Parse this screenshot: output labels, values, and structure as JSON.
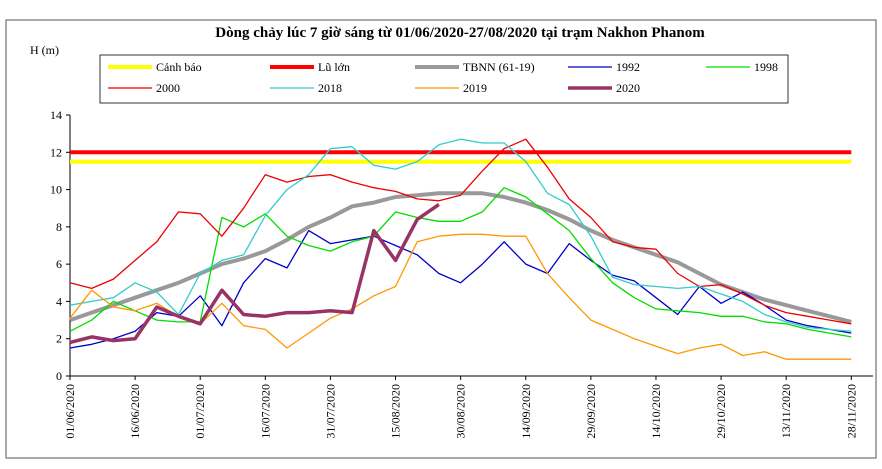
{
  "chart_data": {
    "type": "line",
    "title": "Dòng chảy lúc 7 giờ sáng từ 01/06/2020-27/08/2020 tại trạm Nakhon Phanom",
    "y_label": "H (m)",
    "x": [
      "2020-06-01",
      "2020-06-06",
      "2020-06-11",
      "2020-06-16",
      "2020-06-21",
      "2020-06-26",
      "2020-07-01",
      "2020-07-06",
      "2020-07-11",
      "2020-07-16",
      "2020-07-21",
      "2020-07-26",
      "2020-07-31",
      "2020-08-05",
      "2020-08-10",
      "2020-08-15",
      "2020-08-20",
      "2020-08-25",
      "2020-08-30",
      "2020-09-04",
      "2020-09-09",
      "2020-09-14",
      "2020-09-19",
      "2020-09-24",
      "2020-09-29",
      "2020-10-04",
      "2020-10-09",
      "2020-10-14",
      "2020-10-19",
      "2020-10-24",
      "2020-10-29",
      "2020-11-03",
      "2020-11-08",
      "2020-11-13",
      "2020-11-18",
      "2020-11-23",
      "2020-11-28"
    ],
    "xlim": [
      "2020-06-01",
      "2020-12-03"
    ],
    "xticks": [
      {
        "value": "2020-06-01",
        "label": "01/06/2020"
      },
      {
        "value": "2020-06-16",
        "label": "16/06/2020"
      },
      {
        "value": "2020-07-01",
        "label": "01/07/2020"
      },
      {
        "value": "2020-07-16",
        "label": "16/07/2020"
      },
      {
        "value": "2020-07-31",
        "label": "31/07/2020"
      },
      {
        "value": "2020-08-15",
        "label": "15/08/2020"
      },
      {
        "value": "2020-08-30",
        "label": "30/08/2020"
      },
      {
        "value": "2020-09-14",
        "label": "14/09/2020"
      },
      {
        "value": "2020-09-29",
        "label": "29/09/2020"
      },
      {
        "value": "2020-10-14",
        "label": "14/10/2020"
      },
      {
        "value": "2020-10-29",
        "label": "29/10/2020"
      },
      {
        "value": "2020-11-13",
        "label": "13/11/2020"
      },
      {
        "value": "2020-11-28",
        "label": "28/11/2020"
      }
    ],
    "ylim": [
      0,
      14
    ],
    "yticks": [
      0,
      2,
      4,
      6,
      8,
      10,
      12,
      14
    ],
    "series": [
      {
        "name": "Cảnh báo",
        "color": "#ffff00",
        "width": 4,
        "values": [
          11.5,
          11.5,
          11.5,
          11.5,
          11.5,
          11.5,
          11.5,
          11.5,
          11.5,
          11.5,
          11.5,
          11.5,
          11.5,
          11.5,
          11.5,
          11.5,
          11.5,
          11.5,
          11.5,
          11.5,
          11.5,
          11.5,
          11.5,
          11.5,
          11.5,
          11.5,
          11.5,
          11.5,
          11.5,
          11.5,
          11.5,
          11.5,
          11.5,
          11.5,
          11.5,
          11.5,
          11.5
        ]
      },
      {
        "name": "Lũ lớn",
        "color": "#ff0000",
        "width": 4,
        "values": [
          12,
          12,
          12,
          12,
          12,
          12,
          12,
          12,
          12,
          12,
          12,
          12,
          12,
          12,
          12,
          12,
          12,
          12,
          12,
          12,
          12,
          12,
          12,
          12,
          12,
          12,
          12,
          12,
          12,
          12,
          12,
          12,
          12,
          12,
          12,
          12,
          12
        ]
      },
      {
        "name": "TBNN (61-19)",
        "color": "#999999",
        "width": 4,
        "values": [
          3.0,
          3.4,
          3.8,
          4.2,
          4.6,
          5.0,
          5.5,
          6.0,
          6.3,
          6.7,
          7.3,
          8.0,
          8.5,
          9.1,
          9.3,
          9.6,
          9.7,
          9.8,
          9.8,
          9.8,
          9.6,
          9.3,
          8.9,
          8.4,
          7.8,
          7.3,
          6.9,
          6.5,
          6.1,
          5.5,
          4.9,
          4.5,
          4.1,
          3.8,
          3.5,
          3.2,
          2.9
        ]
      },
      {
        "name": "1992",
        "color": "#0000cc",
        "width": 1.3,
        "values": [
          1.5,
          1.7,
          2.0,
          2.4,
          3.4,
          3.2,
          4.3,
          2.7,
          5.0,
          6.3,
          5.8,
          7.8,
          7.1,
          7.3,
          7.5,
          7.0,
          6.5,
          5.5,
          5.0,
          6.0,
          7.2,
          6.0,
          5.5,
          7.1,
          6.2,
          5.4,
          5.1,
          4.2,
          3.3,
          4.8,
          3.9,
          4.5,
          3.8,
          3.0,
          2.7,
          2.5,
          2.3
        ]
      },
      {
        "name": "1998",
        "color": "#00dd00",
        "width": 1.3,
        "values": [
          2.4,
          3.0,
          4.0,
          3.5,
          3.0,
          2.9,
          2.9,
          8.5,
          8.0,
          8.7,
          7.5,
          7.0,
          6.7,
          7.2,
          7.5,
          8.8,
          8.5,
          8.3,
          8.3,
          8.8,
          10.1,
          9.6,
          8.7,
          7.8,
          6.3,
          5.0,
          4.2,
          3.6,
          3.5,
          3.4,
          3.2,
          3.2,
          2.9,
          2.8,
          2.5,
          2.3,
          2.1
        ]
      },
      {
        "name": "2000",
        "color": "#ee0000",
        "width": 1.3,
        "values": [
          5.0,
          4.7,
          5.2,
          6.2,
          7.2,
          8.8,
          8.7,
          7.5,
          9.0,
          10.8,
          10.4,
          10.7,
          10.8,
          10.4,
          10.1,
          9.9,
          9.5,
          9.4,
          9.7,
          11.0,
          12.2,
          12.7,
          11.2,
          9.5,
          8.5,
          7.2,
          6.9,
          6.8,
          5.5,
          4.8,
          4.9,
          4.4,
          3.8,
          3.4,
          3.2,
          3.0,
          2.8
        ]
      },
      {
        "name": "2018",
        "color": "#33cccc",
        "width": 1.3,
        "values": [
          3.8,
          4.0,
          4.2,
          5.0,
          4.5,
          3.3,
          5.5,
          6.2,
          6.5,
          8.6,
          10.0,
          10.8,
          12.2,
          12.3,
          11.3,
          11.1,
          11.5,
          12.4,
          12.7,
          12.5,
          12.5,
          11.5,
          9.8,
          9.2,
          7.5,
          5.3,
          4.9,
          4.8,
          4.7,
          4.8,
          4.4,
          4.0,
          3.3,
          2.9,
          2.6,
          2.5,
          2.4
        ]
      },
      {
        "name": "2019",
        "color": "#ff9900",
        "width": 1.3,
        "values": [
          3.1,
          4.6,
          3.7,
          3.5,
          3.9,
          3.2,
          2.8,
          3.9,
          2.7,
          2.5,
          1.5,
          2.3,
          3.1,
          3.6,
          4.3,
          4.8,
          7.2,
          7.5,
          7.6,
          7.6,
          7.5,
          7.5,
          5.5,
          4.2,
          3.0,
          2.5,
          2.0,
          1.6,
          1.2,
          1.5,
          1.7,
          1.1,
          1.3,
          0.9,
          0.9,
          0.9,
          0.9
        ]
      },
      {
        "name": "2020",
        "color": "#993366",
        "width": 3.5,
        "values": [
          1.8,
          2.1,
          1.9,
          2.0,
          3.7,
          3.2,
          2.8,
          4.6,
          3.3,
          3.2,
          3.4,
          3.4,
          3.5,
          3.4,
          7.8,
          6.2,
          8.4,
          9.2,
          null,
          null,
          null,
          null,
          null,
          null,
          null,
          null,
          null,
          null,
          null,
          null,
          null,
          null,
          null,
          null,
          null,
          null,
          null
        ]
      }
    ]
  }
}
